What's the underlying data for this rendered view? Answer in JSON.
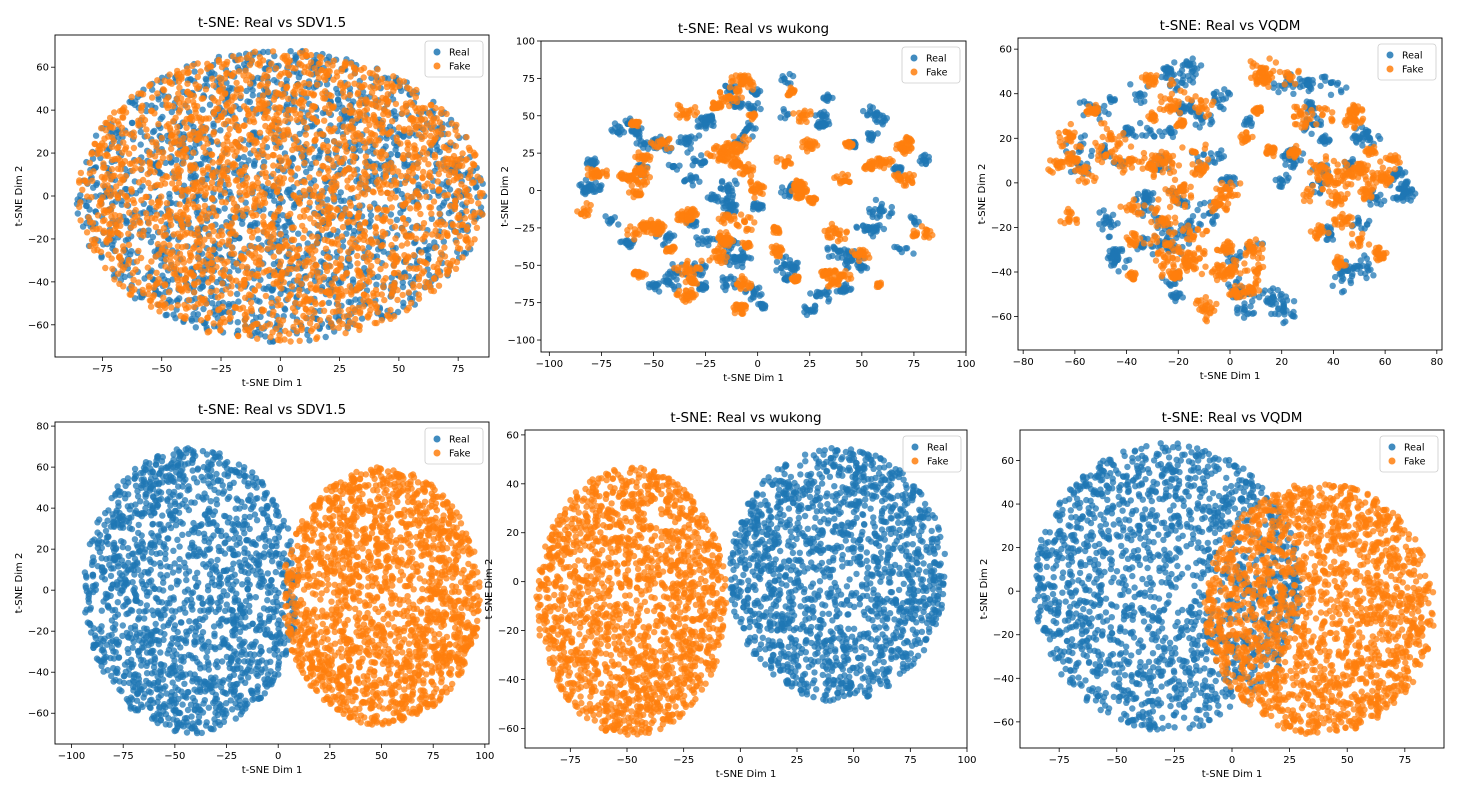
{
  "colors": {
    "real": "#1f77b4",
    "fake": "#ff7f0e"
  },
  "chart_data": [
    {
      "type": "scatter",
      "title": "t-SNE: Real vs SDV1.5",
      "xlabel": "t-SNE Dim 1",
      "ylabel": "t-SNE Dim 2",
      "xlim": [
        -95,
        88
      ],
      "ylim": [
        -75,
        75
      ],
      "xticks": [
        -75,
        -50,
        -25,
        0,
        25,
        50,
        75
      ],
      "yticks": [
        -60,
        -40,
        -20,
        0,
        20,
        40,
        60
      ],
      "legend": {
        "position": "top-right",
        "entries": [
          "Real",
          "Fake"
        ]
      },
      "series": [
        {
          "name": "Real",
          "pattern": "ellipse",
          "center": [
            0,
            0
          ],
          "radius": [
            86,
            68
          ],
          "count": 1800
        },
        {
          "name": "Fake",
          "pattern": "ellipse",
          "center": [
            0,
            0
          ],
          "radius": [
            86,
            68
          ],
          "count": 2300
        }
      ]
    },
    {
      "type": "scatter",
      "title": "t-SNE: Real vs wukong",
      "xlabel": "t-SNE Dim 1",
      "ylabel": "t-SNE Dim 2",
      "xlim": [
        -104,
        100
      ],
      "ylim": [
        -108,
        100
      ],
      "xticks": [
        -100,
        -75,
        -50,
        -25,
        0,
        25,
        50,
        75,
        100
      ],
      "yticks": [
        -100,
        -75,
        -50,
        -25,
        0,
        25,
        50,
        75,
        100
      ],
      "legend": {
        "position": "top-right",
        "entries": [
          "Real",
          "Fake"
        ]
      },
      "series": [
        {
          "name": "Real",
          "pattern": "clusters",
          "center": [
            0,
            -5
          ],
          "radius": [
            92,
            88
          ],
          "count": 1100
        },
        {
          "name": "Fake",
          "pattern": "clusters",
          "center": [
            0,
            -5
          ],
          "radius": [
            92,
            88
          ],
          "count": 1500
        }
      ]
    },
    {
      "type": "scatter",
      "title": "t-SNE: Real vs VQDM",
      "xlabel": "t-SNE Dim 1",
      "ylabel": "t-SNE Dim 2",
      "xlim": [
        -82,
        82
      ],
      "ylim": [
        -75,
        65
      ],
      "xticks": [
        -80,
        -60,
        -40,
        -20,
        0,
        20,
        40,
        60,
        80
      ],
      "yticks": [
        -60,
        -40,
        -20,
        0,
        20,
        40,
        60
      ],
      "legend": {
        "position": "top-right",
        "entries": [
          "Real",
          "Fake"
        ]
      },
      "series": [
        {
          "name": "Real",
          "pattern": "clusters",
          "center": [
            0,
            -2
          ],
          "radius": [
            76,
            62
          ],
          "count": 1100
        },
        {
          "name": "Fake",
          "pattern": "clusters",
          "center": [
            0,
            -2
          ],
          "radius": [
            76,
            62
          ],
          "count": 1500
        }
      ]
    },
    {
      "type": "scatter",
      "title": "t-SNE: Real vs SDV1.5",
      "xlabel": "t-SNE Dim 1",
      "ylabel": "t-SNE Dim 2",
      "xlim": [
        -108,
        102
      ],
      "ylim": [
        -75,
        82
      ],
      "xticks": [
        -100,
        -75,
        -50,
        -25,
        0,
        25,
        50,
        75,
        100
      ],
      "yticks": [
        -60,
        -40,
        -20,
        0,
        20,
        40,
        60,
        80
      ],
      "legend": {
        "position": "top-right",
        "entries": [
          "Real",
          "Fake"
        ]
      },
      "series": [
        {
          "name": "Real",
          "pattern": "blob",
          "center": [
            -42,
            0
          ],
          "radius": [
            52,
            70
          ],
          "count": 1700
        },
        {
          "name": "Fake",
          "pattern": "blob",
          "center": [
            50,
            -3
          ],
          "radius": [
            48,
            63
          ],
          "count": 1900
        }
      ]
    },
    {
      "type": "scatter",
      "title": "t-SNE: Real vs wukong",
      "xlabel": "t-SNE Dim 1",
      "ylabel": "t-SNE Dim 2",
      "xlim": [
        -95,
        100
      ],
      "ylim": [
        -68,
        62
      ],
      "xticks": [
        -75,
        -50,
        -25,
        0,
        25,
        50,
        75,
        100
      ],
      "yticks": [
        -60,
        -40,
        -20,
        0,
        20,
        40,
        60
      ],
      "legend": {
        "position": "top-right",
        "entries": [
          "Real",
          "Fake"
        ]
      },
      "series": [
        {
          "name": "Real",
          "pattern": "blob",
          "center": [
            43,
            3
          ],
          "radius": [
            48,
            52
          ],
          "count": 1600
        },
        {
          "name": "Fake",
          "pattern": "blob",
          "center": [
            -48,
            -8
          ],
          "radius": [
            42,
            55
          ],
          "count": 1800
        }
      ]
    },
    {
      "type": "scatter",
      "title": "t-SNE: Real vs VQDM",
      "xlabel": "t-SNE Dim 1",
      "ylabel": "t-SNE Dim 2",
      "xlim": [
        -92,
        92
      ],
      "ylim": [
        -72,
        74
      ],
      "xticks": [
        -75,
        -50,
        -25,
        0,
        25,
        50,
        75
      ],
      "yticks": [
        -60,
        -40,
        -20,
        0,
        20,
        40,
        60
      ],
      "legend": {
        "position": "top-right",
        "entries": [
          "Real",
          "Fake"
        ]
      },
      "series": [
        {
          "name": "Real",
          "pattern": "blob",
          "center": [
            -28,
            2
          ],
          "radius": [
            58,
            66
          ],
          "count": 1700
        },
        {
          "name": "Fake",
          "pattern": "blob",
          "center": [
            38,
            -8
          ],
          "radius": [
            50,
            58
          ],
          "count": 1900
        }
      ]
    }
  ]
}
